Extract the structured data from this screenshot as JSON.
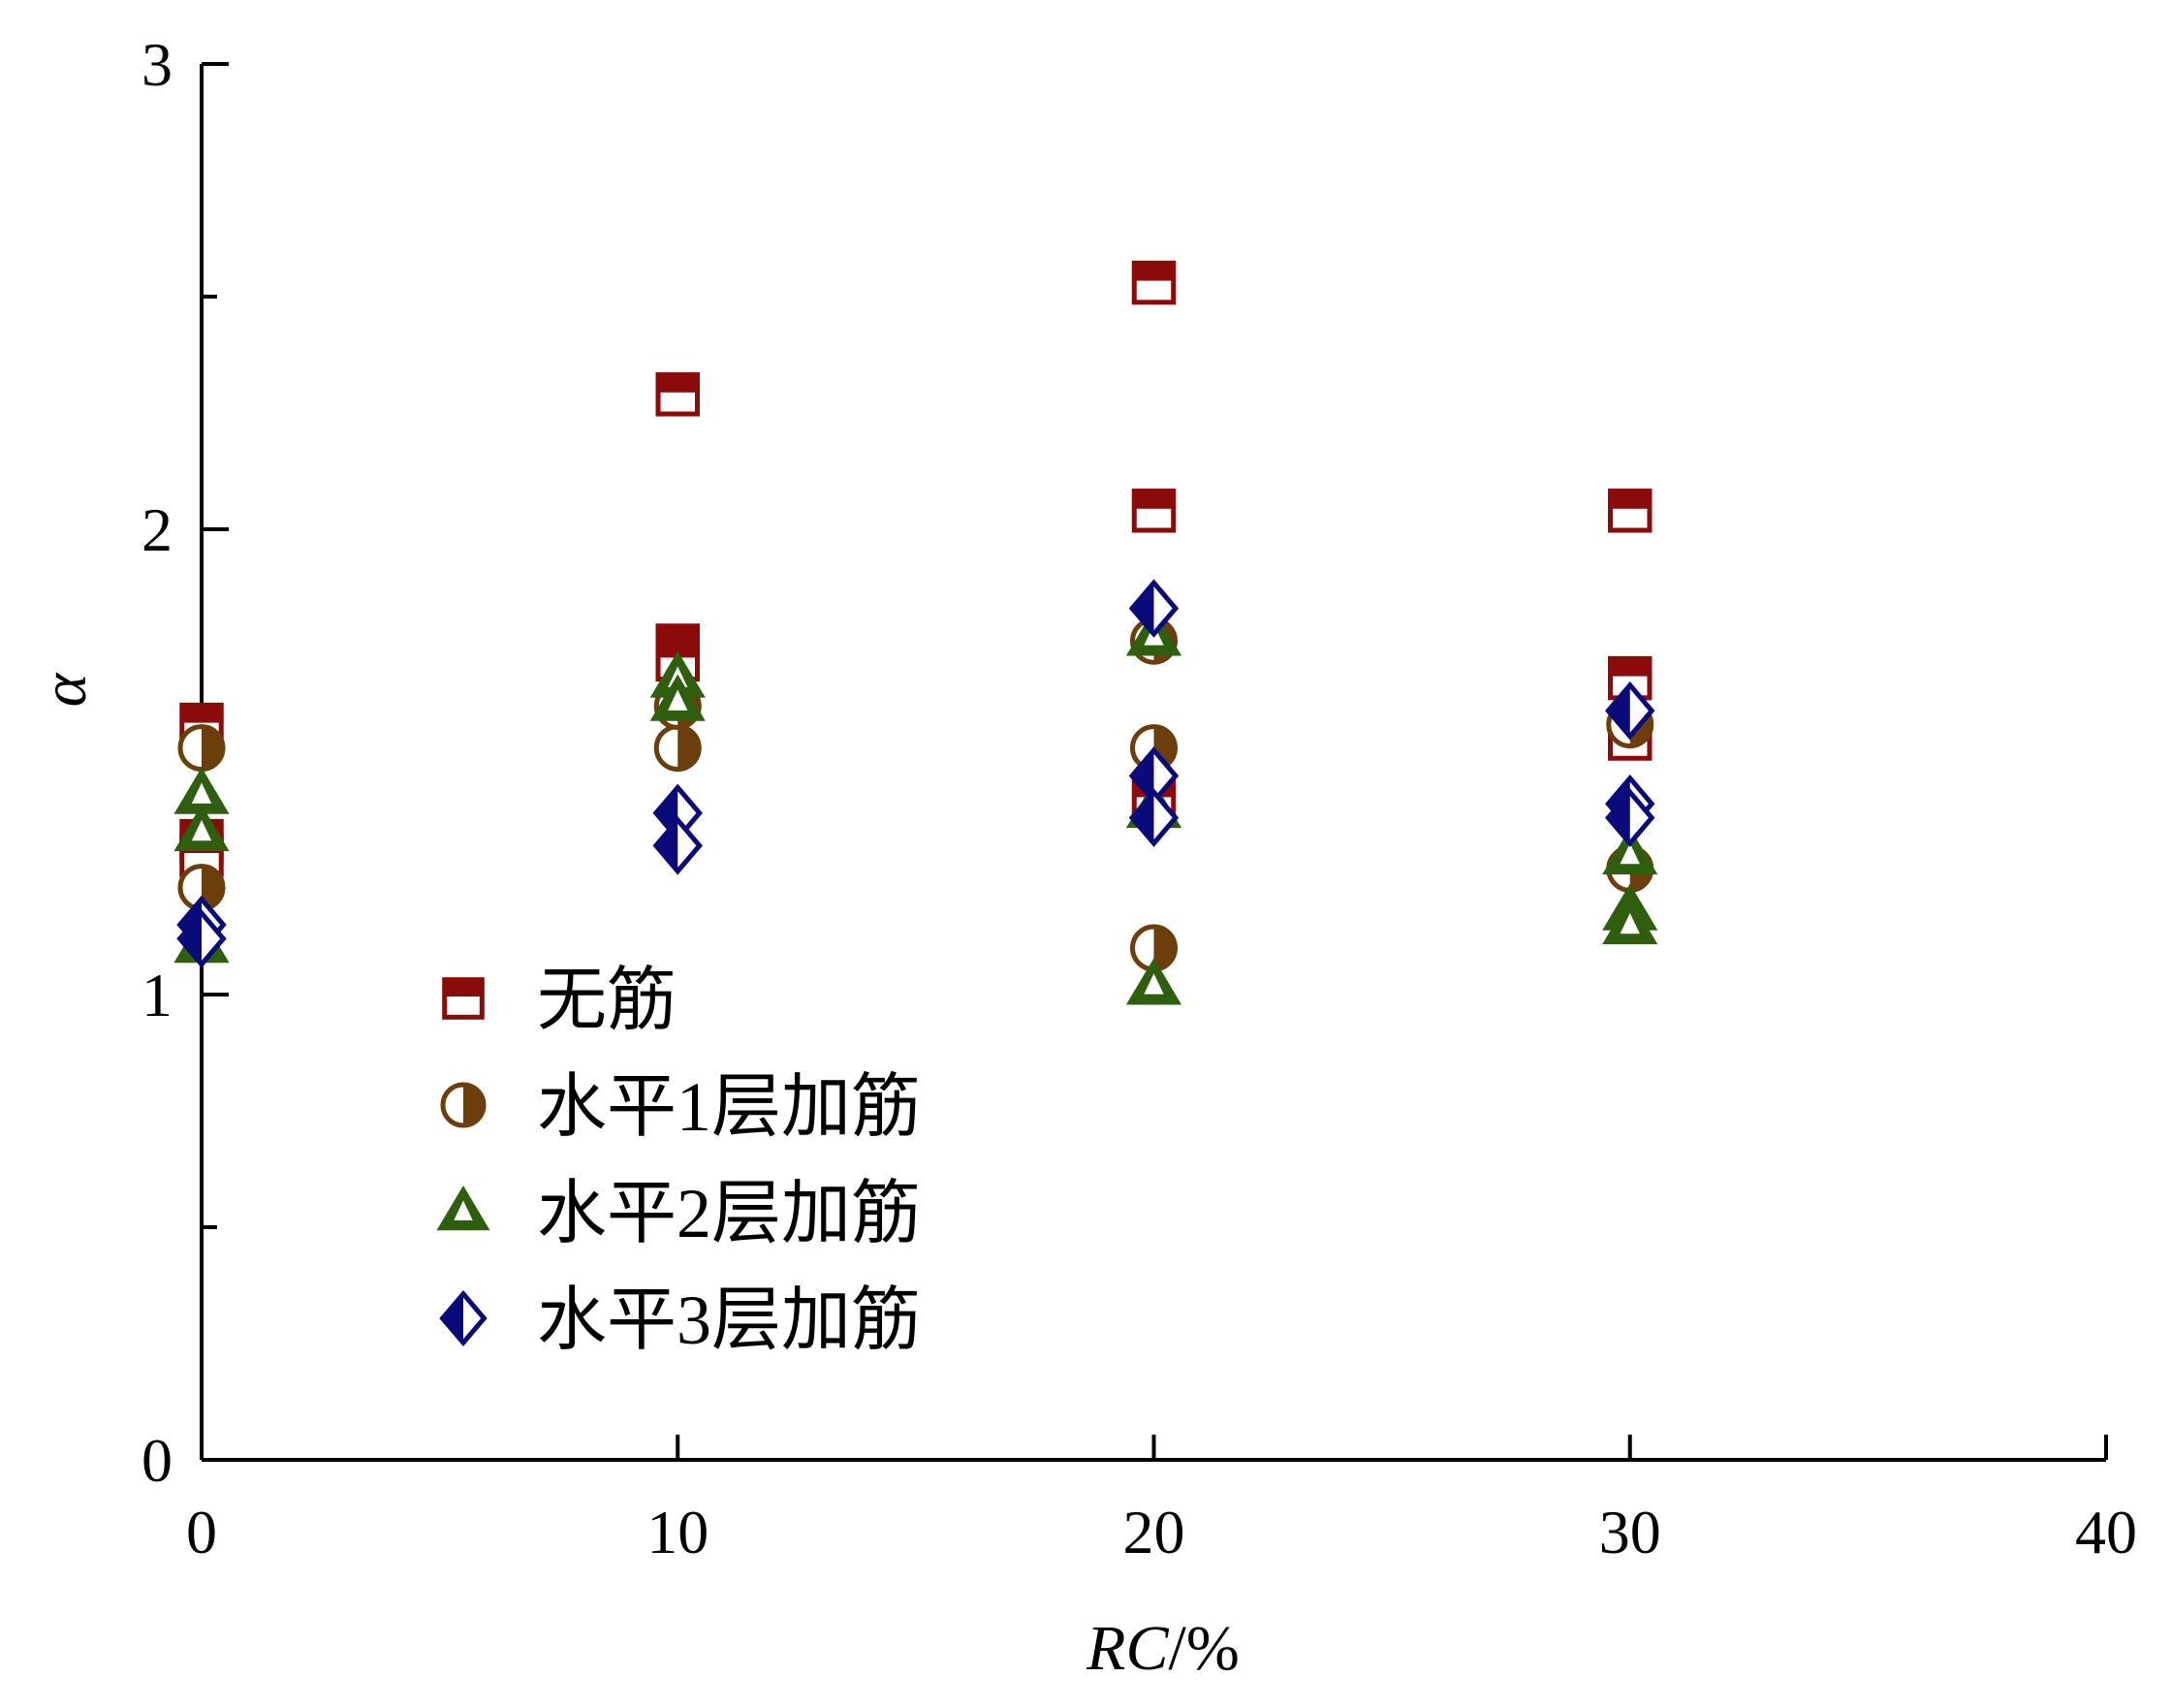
{
  "chart_data": {
    "type": "scatter",
    "title": "",
    "xlabel": "RC/%",
    "xlabel_italic_part": "RC",
    "xlabel_unit_part": "/%",
    "ylabel": "α",
    "xlim": [
      0,
      40
    ],
    "ylim": [
      0,
      3
    ],
    "x_ticks": [
      "0",
      "10",
      "20",
      "30",
      "40"
    ],
    "y_ticks": [
      "0",
      "1",
      "2",
      "3"
    ],
    "x_tick_values": [
      0,
      10,
      20,
      30,
      40
    ],
    "y_tick_values": [
      0,
      1,
      2,
      3
    ],
    "y_minor_tick_values": [
      0.5,
      1.5,
      2.5
    ],
    "grid": false,
    "legend_position": "center-left",
    "series": [
      {
        "name": "无筋",
        "marker": "square-half",
        "color": "#8B0A0A",
        "points": [
          {
            "x": 0,
            "y": 1.58
          },
          {
            "x": 0,
            "y": 1.33
          },
          {
            "x": 0,
            "y": 1.3
          },
          {
            "x": 10,
            "y": 2.29
          },
          {
            "x": 10,
            "y": 1.75
          },
          {
            "x": 10,
            "y": 1.72
          },
          {
            "x": 20,
            "y": 2.53
          },
          {
            "x": 20,
            "y": 2.04
          },
          {
            "x": 20,
            "y": 1.42
          },
          {
            "x": 30,
            "y": 2.04
          },
          {
            "x": 30,
            "y": 1.68
          },
          {
            "x": 30,
            "y": 1.55
          }
        ]
      },
      {
        "name": "水平1层加筋",
        "marker": "circle-half",
        "color": "#6B3E0C",
        "points": [
          {
            "x": 0,
            "y": 1.53
          },
          {
            "x": 0,
            "y": 1.23
          },
          {
            "x": 10,
            "y": 1.53
          },
          {
            "x": 10,
            "y": 1.62
          },
          {
            "x": 20,
            "y": 1.53
          },
          {
            "x": 20,
            "y": 1.1
          },
          {
            "x": 20,
            "y": 1.76
          },
          {
            "x": 30,
            "y": 1.58
          },
          {
            "x": 30,
            "y": 1.27
          }
        ]
      },
      {
        "name": "水平2层加筋",
        "marker": "triangle-half",
        "color": "#2E5E0E",
        "points": [
          {
            "x": 0,
            "y": 1.43
          },
          {
            "x": 0,
            "y": 1.35
          },
          {
            "x": 0,
            "y": 1.11
          },
          {
            "x": 10,
            "y": 1.68
          },
          {
            "x": 10,
            "y": 1.63
          },
          {
            "x": 20,
            "y": 1.77
          },
          {
            "x": 20,
            "y": 1.4
          },
          {
            "x": 20,
            "y": 1.02
          },
          {
            "x": 30,
            "y": 1.3
          },
          {
            "x": 30,
            "y": 1.18
          },
          {
            "x": 30,
            "y": 1.15
          }
        ]
      },
      {
        "name": "水平3层加筋",
        "marker": "diamond-half",
        "color": "#0A0A7A",
        "points": [
          {
            "x": 0,
            "y": 1.15
          },
          {
            "x": 0,
            "y": 1.12
          },
          {
            "x": 10,
            "y": 1.39
          },
          {
            "x": 10,
            "y": 1.32
          },
          {
            "x": 20,
            "y": 1.83
          },
          {
            "x": 20,
            "y": 1.47
          },
          {
            "x": 20,
            "y": 1.38
          },
          {
            "x": 30,
            "y": 1.61
          },
          {
            "x": 30,
            "y": 1.41
          },
          {
            "x": 30,
            "y": 1.38
          }
        ]
      }
    ]
  }
}
